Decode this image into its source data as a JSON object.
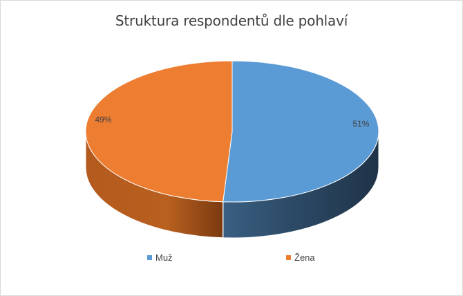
{
  "chart_data": {
    "type": "pie",
    "title": "Struktura respondentů dle pohlaví",
    "categories": [
      "Muž",
      "Žena"
    ],
    "values": [
      51,
      49
    ],
    "data_labels": [
      "51%",
      "49%"
    ],
    "colors": [
      "#5b9bd5",
      "#ed7d31"
    ],
    "legend_position": "bottom",
    "style": "3d"
  }
}
